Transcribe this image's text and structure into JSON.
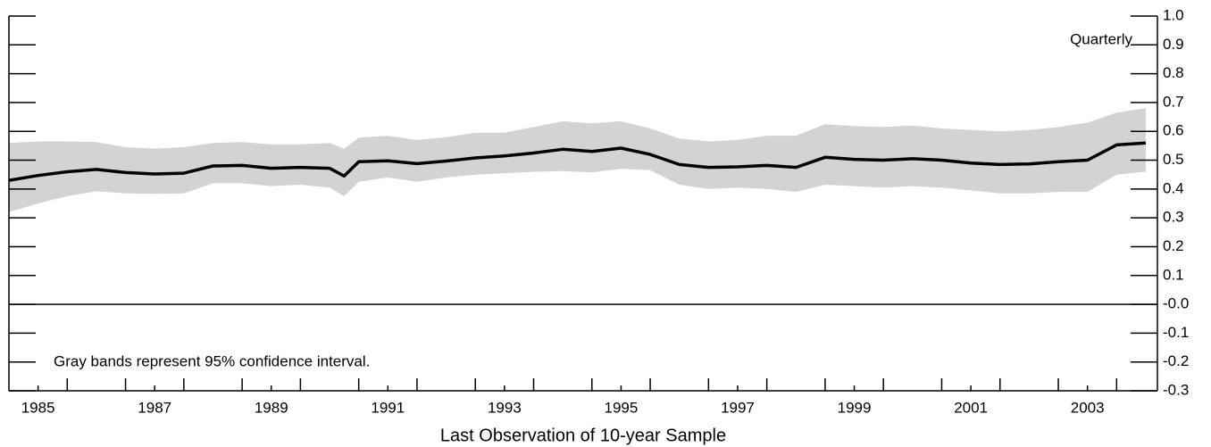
{
  "chart_data": {
    "type": "line",
    "annotation": "Quarterly",
    "note": "Gray bands represent 95% confidence interval.",
    "x_label": "Last Observation of 10-year Sample",
    "xlim": [
      1984.5,
      2004.2
    ],
    "xticks": [
      1985,
      1987,
      1989,
      1991,
      1993,
      1995,
      1997,
      1999,
      2001,
      2003
    ],
    "xminorticks": [
      1985.5,
      1986.5,
      1987.5,
      1988.5,
      1989.5,
      1990.5,
      1991.5,
      1992.5,
      1993.5,
      1994.5,
      1995.5,
      1996.5,
      1997.5,
      1998.5,
      1999.5,
      2000.5,
      2001.5,
      2002.5,
      2003.5
    ],
    "ylim": [
      -0.3,
      1.0
    ],
    "yticks": [
      {
        "value": 1.0,
        "label": "1.0"
      },
      {
        "value": 0.9,
        "label": "0.9"
      },
      {
        "value": 0.8,
        "label": "0.8"
      },
      {
        "value": 0.7,
        "label": "0.7"
      },
      {
        "value": 0.6,
        "label": "0.6"
      },
      {
        "value": 0.5,
        "label": "0.5"
      },
      {
        "value": 0.4,
        "label": "0.4"
      },
      {
        "value": 0.3,
        "label": "0.3"
      },
      {
        "value": 0.2,
        "label": "0.2"
      },
      {
        "value": 0.1,
        "label": "0.1"
      },
      {
        "value": 0,
        "label": "-0.0"
      },
      {
        "value": -0.1,
        "label": "-0.1"
      },
      {
        "value": -0.2,
        "label": "-0.2"
      },
      {
        "value": -0.3,
        "label": "-0.3"
      }
    ],
    "zero_line": true,
    "x": [
      1984.5,
      1985,
      1985.5,
      1986,
      1986.5,
      1987,
      1987.5,
      1988,
      1988.5,
      1989,
      1989.5,
      1990,
      1990.25,
      1990.5,
      1991,
      1991.5,
      1992,
      1992.5,
      1993,
      1993.5,
      1994,
      1994.5,
      1995,
      1995.5,
      1996,
      1996.5,
      1997,
      1997.5,
      1998,
      1998.5,
      1999,
      1999.5,
      2000,
      2000.5,
      2001,
      2001.5,
      2002,
      2002.5,
      2003,
      2003.5,
      2004
    ],
    "line": {
      "color": "#000000",
      "values": [
        0.43,
        0.447,
        0.46,
        0.468,
        0.457,
        0.452,
        0.455,
        0.48,
        0.482,
        0.472,
        0.475,
        0.472,
        0.445,
        0.495,
        0.498,
        0.488,
        0.497,
        0.508,
        0.515,
        0.525,
        0.538,
        0.53,
        0.542,
        0.52,
        0.485,
        0.475,
        0.477,
        0.482,
        0.475,
        0.51,
        0.503,
        0.5,
        0.505,
        0.5,
        0.49,
        0.485,
        0.487,
        0.495,
        0.5,
        0.553,
        0.56
      ]
    },
    "band": {
      "color": "#d3d3d3",
      "upper": [
        0.56,
        0.565,
        0.565,
        0.563,
        0.545,
        0.54,
        0.545,
        0.56,
        0.563,
        0.555,
        0.555,
        0.56,
        0.54,
        0.578,
        0.585,
        0.57,
        0.58,
        0.595,
        0.595,
        0.615,
        0.635,
        0.628,
        0.635,
        0.61,
        0.575,
        0.565,
        0.57,
        0.585,
        0.585,
        0.625,
        0.618,
        0.615,
        0.62,
        0.61,
        0.605,
        0.6,
        0.605,
        0.615,
        0.63,
        0.665,
        0.68
      ],
      "lower": [
        0.32,
        0.35,
        0.375,
        0.392,
        0.385,
        0.383,
        0.385,
        0.42,
        0.42,
        0.41,
        0.415,
        0.405,
        0.375,
        0.425,
        0.44,
        0.425,
        0.44,
        0.45,
        0.455,
        0.46,
        0.462,
        0.458,
        0.47,
        0.465,
        0.415,
        0.4,
        0.405,
        0.4,
        0.39,
        0.415,
        0.41,
        0.405,
        0.41,
        0.405,
        0.395,
        0.385,
        0.385,
        0.39,
        0.39,
        0.45,
        0.46
      ]
    }
  }
}
